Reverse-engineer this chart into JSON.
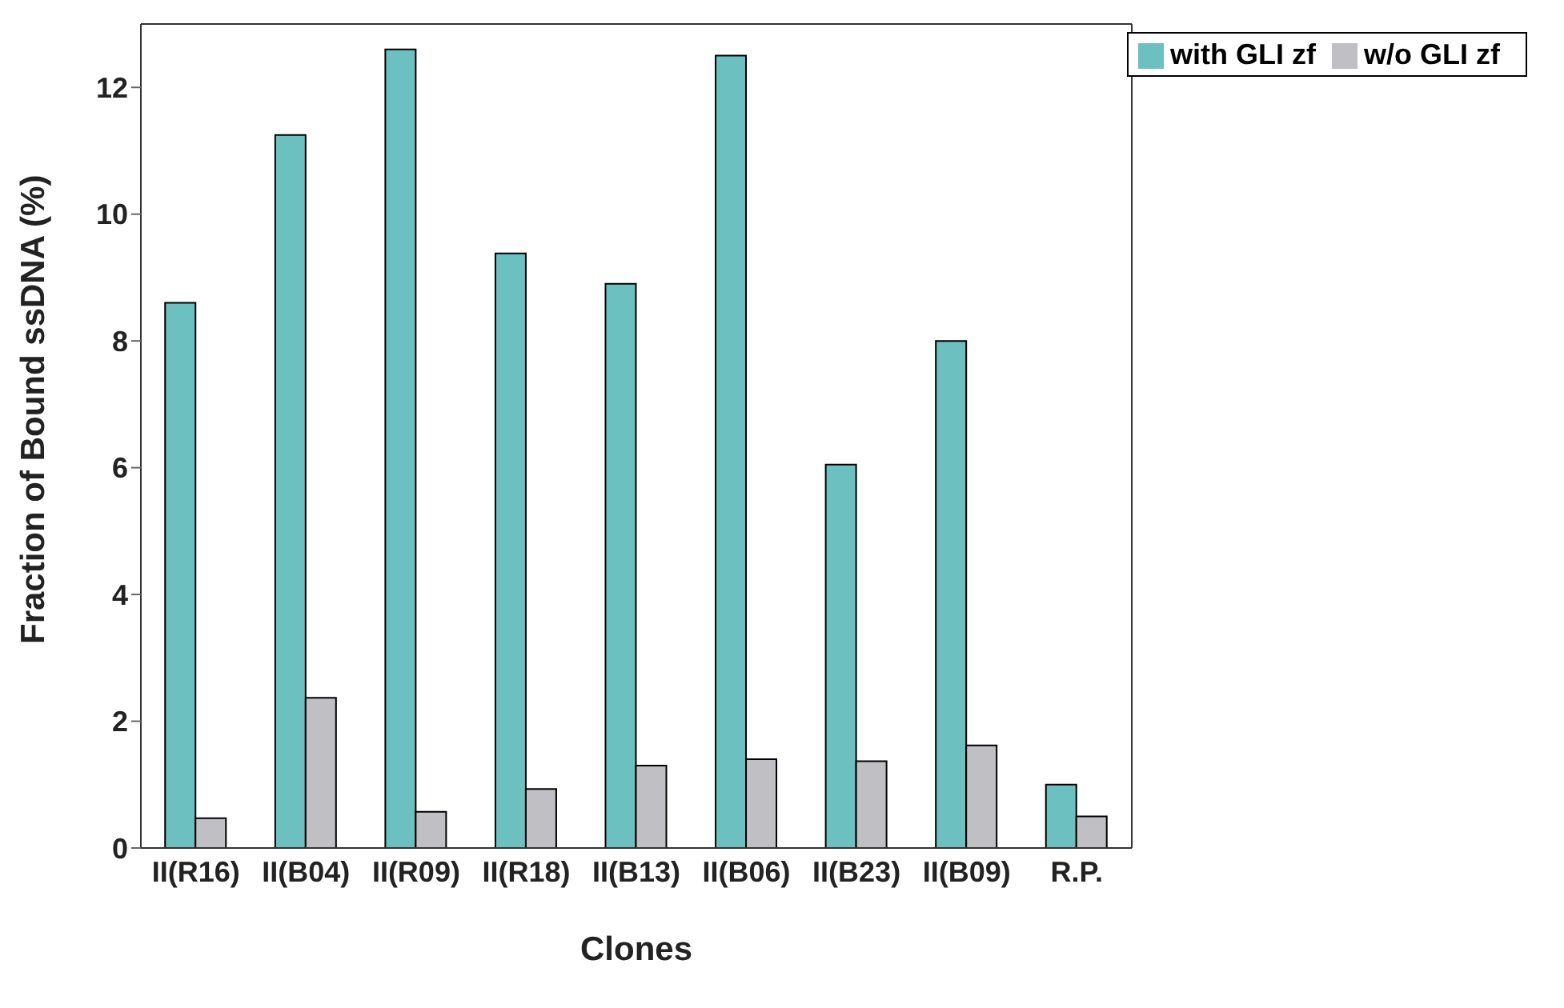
{
  "chart_data": {
    "type": "bar",
    "xlabel": "Clones",
    "ylabel": "Fraction of Bound ssDNA (%)",
    "categories": [
      "II(R16)",
      "II(B04)",
      "II(R09)",
      "II(R18)",
      "II(B13)",
      "II(B06)",
      "II(B23)",
      "II(B09)",
      "R.P."
    ],
    "series": [
      {
        "name": "with GLI zf",
        "color": "#6cc0c0",
        "values": [
          8.6,
          11.25,
          12.6,
          9.38,
          8.9,
          12.5,
          6.05,
          8.0,
          1.0
        ]
      },
      {
        "name": "w/o GLI zf",
        "color": "#c0c0c4",
        "values": [
          0.47,
          2.37,
          0.57,
          0.93,
          1.3,
          1.4,
          1.37,
          1.62,
          0.5
        ]
      }
    ],
    "ylim": [
      0,
      13
    ],
    "yticks": [
      0,
      2,
      4,
      6,
      8,
      10,
      12
    ],
    "grid": false,
    "legend": "top right"
  }
}
